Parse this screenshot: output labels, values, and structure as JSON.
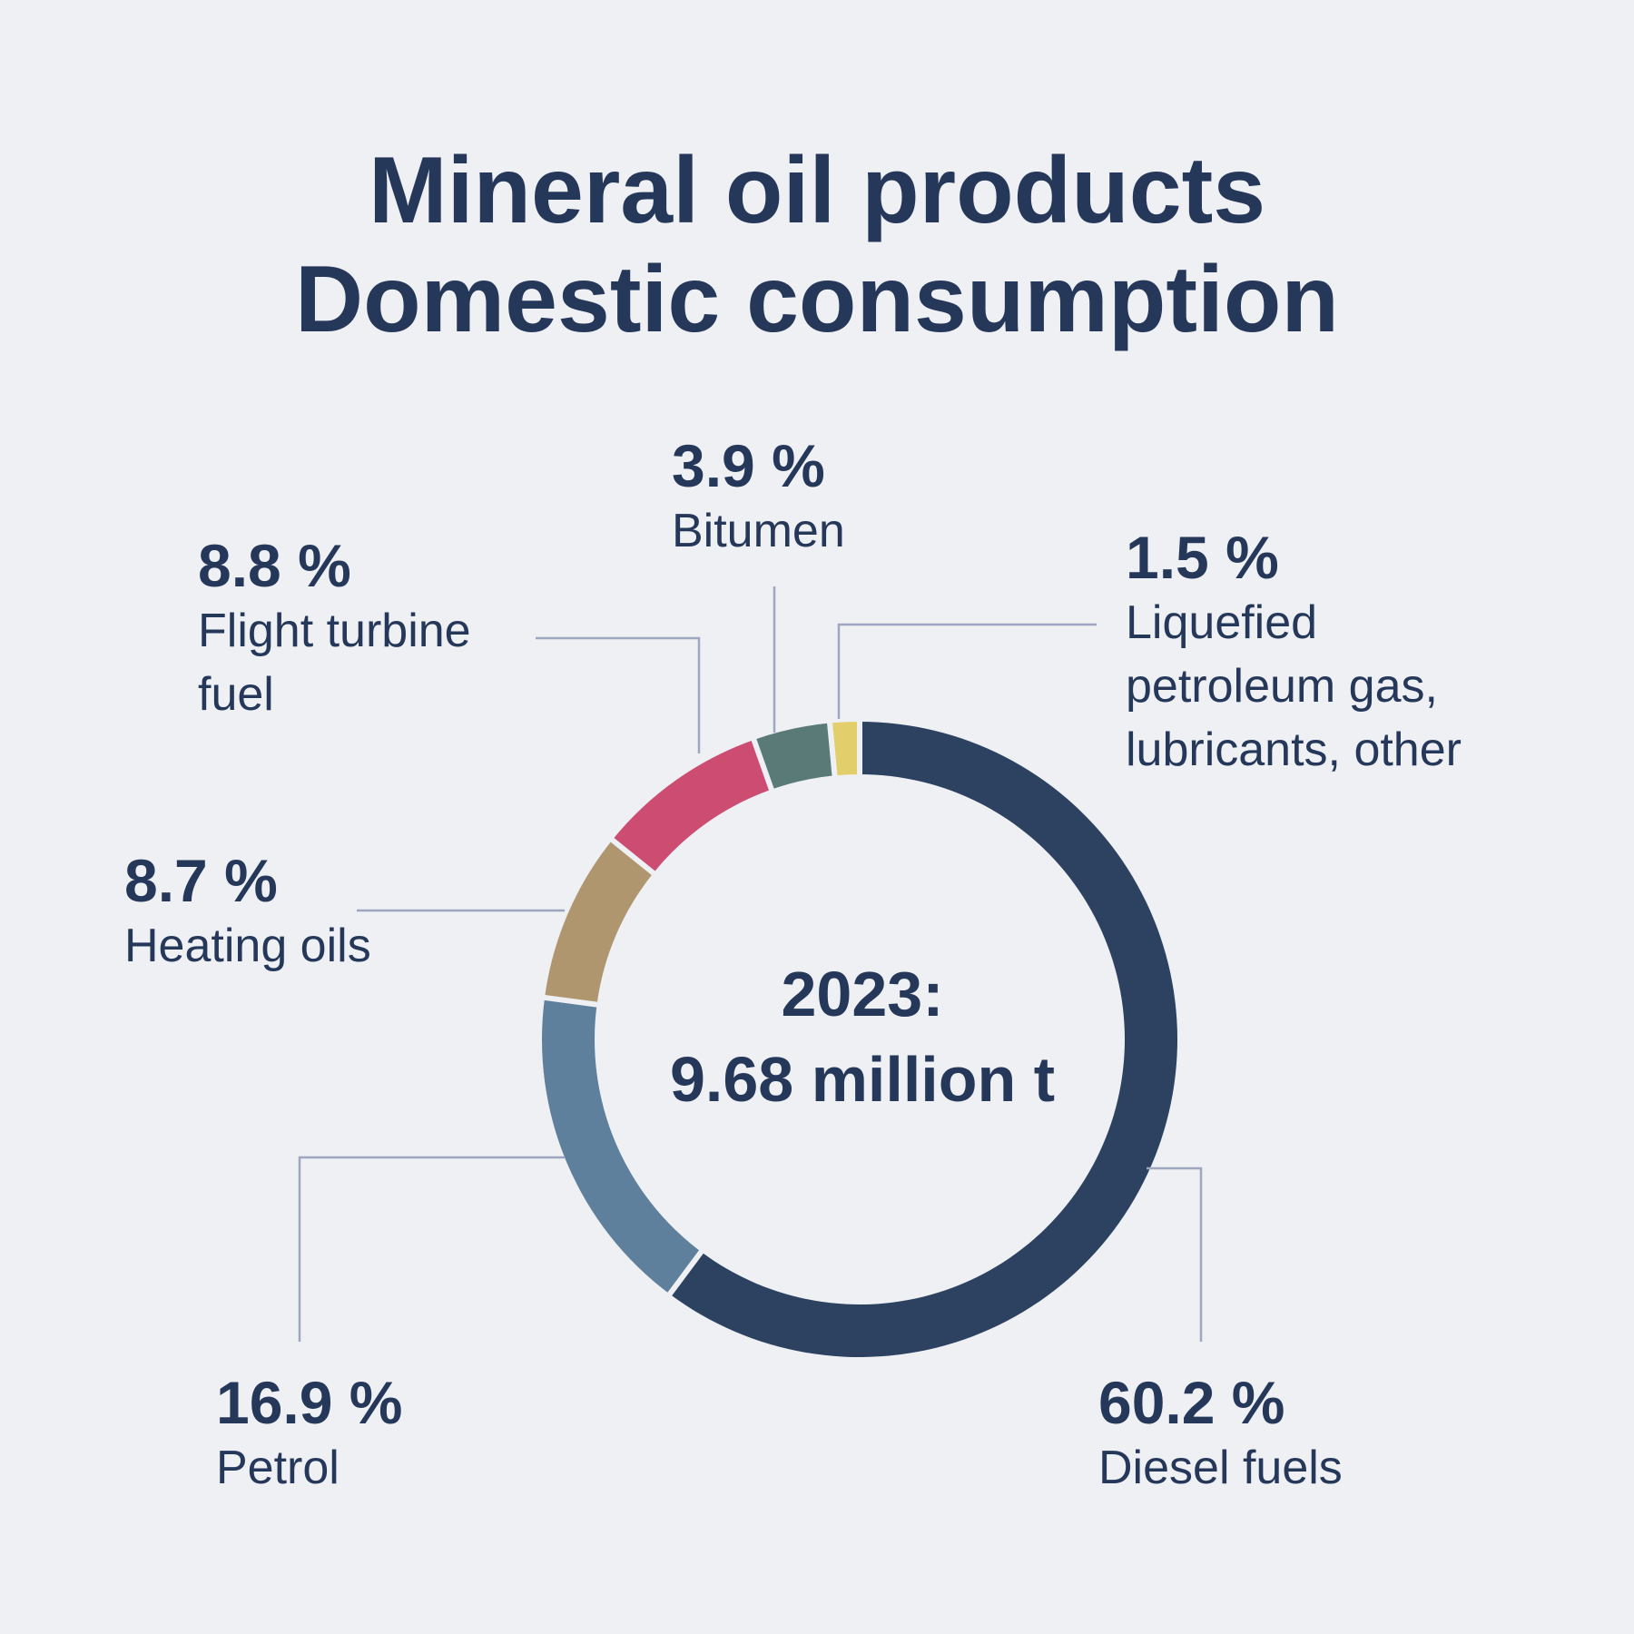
{
  "title": {
    "line1": "Mineral oil products",
    "line2": "Domestic consumption"
  },
  "center": {
    "year_label": "2023:",
    "total_label": "9.68 million t"
  },
  "colors": {
    "background": "#eef0f4",
    "text": "#26385a",
    "leader": "#9ea7bf"
  },
  "chart_data": {
    "type": "pie",
    "variant": "donut",
    "title": "Mineral oil products Domestic consumption",
    "total": "9.68 million t",
    "year": "2023",
    "unit": "%",
    "slices": [
      {
        "name": "Diesel fuels",
        "value": 60.2,
        "pct_label": "60.2 %",
        "color": "#2c4260"
      },
      {
        "name": "Petrol",
        "value": 16.9,
        "pct_label": "16.9 %",
        "color": "#5f809c"
      },
      {
        "name": "Heating oils",
        "value": 8.7,
        "pct_label": "8.7 %",
        "color": "#b0966f"
      },
      {
        "name": "Flight turbine fuel",
        "name_lines": [
          "Flight turbine",
          "fuel"
        ],
        "value": 8.8,
        "pct_label": "8.8 %",
        "color": "#cc4d71"
      },
      {
        "name": "Bitumen",
        "value": 3.9,
        "pct_label": "3.9 %",
        "color": "#5a7a78"
      },
      {
        "name": "Liquefied petroleum gas, lubricants, other",
        "name_lines": [
          "Liquefied",
          "petroleum gas,",
          "lubricants, other"
        ],
        "value": 1.5,
        "pct_label": "1.5 %",
        "color": "#e2cf6c"
      }
    ]
  }
}
